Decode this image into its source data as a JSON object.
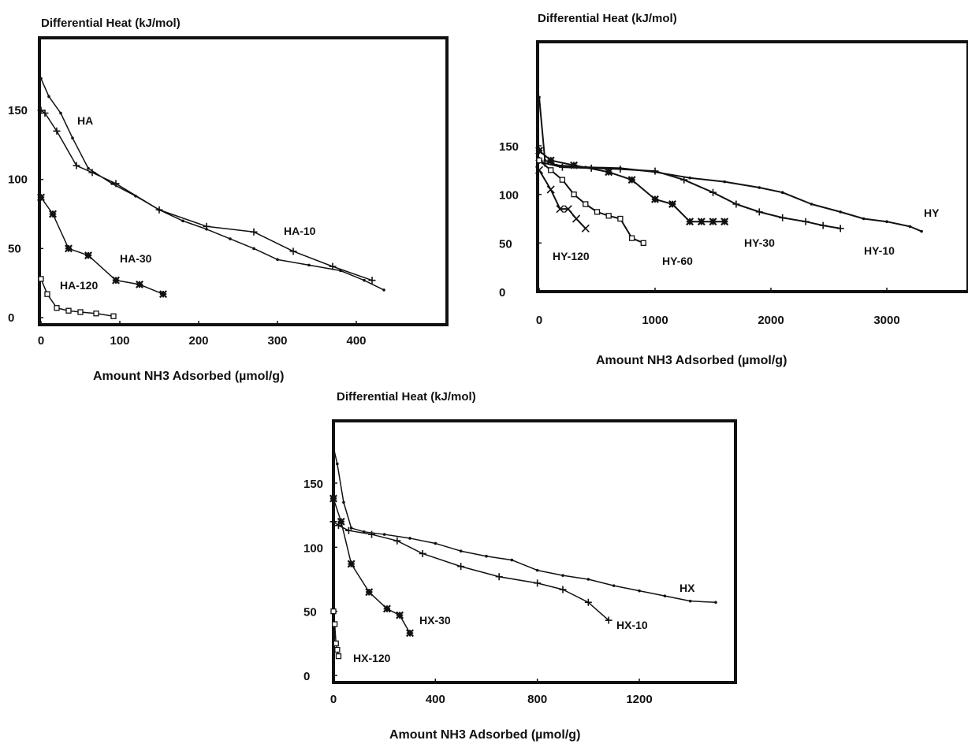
{
  "chart_data": [
    {
      "type": "line",
      "title": "Differential Heat (kJ/mol)",
      "xlabel": "Amount NH3 Adsorbed (µmol/g)",
      "ylabel": "Differential Heat (kJ/mol)",
      "xlim": [
        0,
        500
      ],
      "ylim": [
        0,
        200
      ],
      "xticks": [
        0,
        100,
        200,
        300,
        400
      ],
      "yticks": [
        0,
        50,
        100,
        150
      ],
      "grid": false,
      "legend": "none",
      "series": [
        {
          "name": "HA",
          "marker": "dot",
          "x": [
            0,
            10,
            25,
            40,
            60,
            90,
            120,
            150,
            180,
            210,
            240,
            270,
            300,
            340,
            380,
            410,
            435
          ],
          "y": [
            173,
            160,
            148,
            130,
            108,
            97,
            88,
            78,
            70,
            64,
            57,
            50,
            42,
            38,
            34,
            27,
            20
          ]
        },
        {
          "name": "HA-10",
          "marker": "plus",
          "x": [
            0,
            5,
            20,
            45,
            65,
            95,
            150,
            210,
            270,
            320,
            370,
            420
          ],
          "y": [
            150,
            148,
            135,
            110,
            105,
            97,
            78,
            66,
            62,
            48,
            37,
            27
          ]
        },
        {
          "name": "HA-30",
          "marker": "star",
          "x": [
            0,
            15,
            35,
            60,
            95,
            125,
            155
          ],
          "y": [
            87,
            75,
            50,
            45,
            27,
            24,
            17
          ]
        },
        {
          "name": "HA-120",
          "marker": "square",
          "x": [
            0,
            8,
            20,
            35,
            50,
            70,
            92
          ],
          "y": [
            28,
            17,
            7,
            5,
            4,
            3,
            1
          ]
        }
      ]
    },
    {
      "type": "line",
      "title": "Differential Heat (kJ/mol)",
      "xlabel": "Amount NH3 Adsorbed (µmol/g)",
      "ylabel": "Differential Heat (kJ/mol)",
      "xlim": [
        0,
        3500
      ],
      "ylim": [
        0,
        200
      ],
      "xticks": [
        0,
        1000,
        2000,
        3000
      ],
      "yticks": [
        0,
        50,
        100,
        150
      ],
      "grid": false,
      "legend": "none",
      "series": [
        {
          "name": "HY",
          "marker": "dot",
          "x": [
            0,
            50,
            150,
            400,
            700,
            1000,
            1300,
            1600,
            1900,
            2100,
            2350,
            2600,
            2800,
            3000,
            3200,
            3300
          ],
          "y": [
            200,
            135,
            130,
            128,
            127,
            123,
            117,
            113,
            107,
            102,
            90,
            82,
            75,
            72,
            67,
            62
          ]
        },
        {
          "name": "HY-10",
          "marker": "plus",
          "x": [
            0,
            50,
            200,
            450,
            700,
            1000,
            1250,
            1500,
            1700,
            1900,
            2100,
            2300,
            2450,
            2600
          ],
          "y": [
            135,
            132,
            128,
            127,
            126,
            124,
            115,
            102,
            90,
            82,
            76,
            72,
            68,
            65
          ]
        },
        {
          "name": "HY-30",
          "marker": "star",
          "x": [
            0,
            100,
            300,
            600,
            800,
            1000,
            1150,
            1300,
            1400,
            1500,
            1600
          ],
          "y": [
            145,
            135,
            130,
            123,
            115,
            95,
            90,
            72,
            72,
            72,
            72
          ]
        },
        {
          "name": "HY-60",
          "marker": "square",
          "x": [
            0,
            100,
            200,
            300,
            400,
            500,
            600,
            700,
            800,
            900
          ],
          "y": [
            135,
            125,
            115,
            100,
            90,
            82,
            78,
            75,
            55,
            50
          ]
        },
        {
          "name": "HY-120",
          "marker": "cross",
          "x": [
            0,
            100,
            180,
            250,
            320,
            400
          ],
          "y": [
            125,
            105,
            85,
            85,
            75,
            65
          ]
        }
      ]
    },
    {
      "type": "line",
      "title": "Differential Heat (kJ/mol)",
      "xlabel": "Amount NH3 Adsorbed (µmol/g)",
      "ylabel": "Differential Heat (kJ/mol)",
      "xlim": [
        0,
        1600
      ],
      "ylim": [
        0,
        200
      ],
      "xticks": [
        0,
        400,
        800,
        1200
      ],
      "yticks": [
        0,
        50,
        100,
        150
      ],
      "grid": false,
      "legend": "none",
      "series": [
        {
          "name": "HX",
          "marker": "dot",
          "x": [
            0,
            15,
            40,
            70,
            120,
            200,
            300,
            400,
            500,
            600,
            700,
            800,
            900,
            1000,
            1100,
            1200,
            1300,
            1400,
            1500
          ],
          "y": [
            178,
            165,
            135,
            115,
            112,
            110,
            107,
            103,
            97,
            93,
            90,
            82,
            78,
            75,
            70,
            66,
            62,
            58,
            57
          ]
        },
        {
          "name": "HX-10",
          "marker": "plus",
          "x": [
            0,
            20,
            60,
            150,
            250,
            350,
            500,
            650,
            800,
            900,
            1000,
            1080
          ],
          "y": [
            120,
            117,
            113,
            110,
            105,
            95,
            85,
            77,
            72,
            67,
            57,
            43
          ]
        },
        {
          "name": "HX-30",
          "marker": "star",
          "x": [
            0,
            30,
            70,
            140,
            210,
            260,
            300
          ],
          "y": [
            138,
            120,
            87,
            65,
            52,
            47,
            33
          ]
        },
        {
          "name": "HX-120",
          "marker": "square",
          "x": [
            0,
            5,
            10,
            15,
            20
          ],
          "y": [
            50,
            40,
            25,
            20,
            15
          ]
        }
      ]
    }
  ]
}
